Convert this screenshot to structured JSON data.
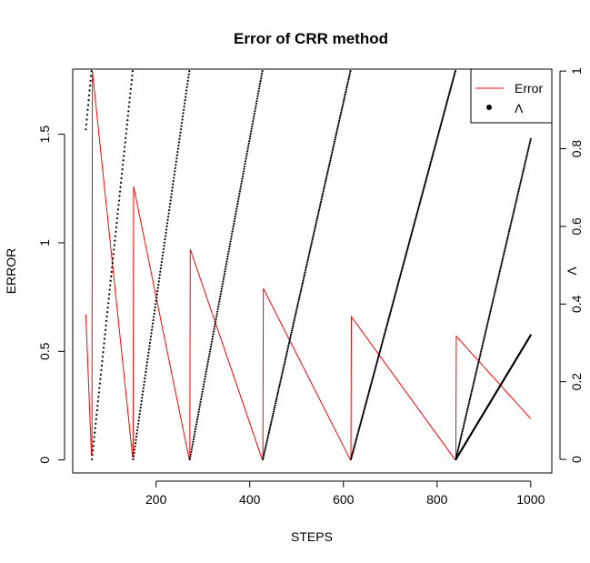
{
  "chart_data": {
    "type": "line",
    "title": "Error of CRR method",
    "xlabel": "STEPS",
    "ylabel": "ERROR",
    "y2label": "Λ",
    "xlim": [
      22,
      1045
    ],
    "ylim": [
      -0.06,
      1.8
    ],
    "y2lim": [
      -0.035,
      1.005
    ],
    "xticks": [
      200,
      400,
      600,
      800,
      1000
    ],
    "yticks": [
      0.0,
      0.5,
      1.0,
      1.5
    ],
    "y2ticks": [
      0.0,
      0.2,
      0.4,
      0.6,
      0.8,
      1.0
    ],
    "grid": false,
    "legend": {
      "position": "top-right",
      "entries": [
        {
          "label": "Error",
          "type": "line",
          "color": "#ff0000"
        },
        {
          "label": "Λ",
          "type": "point",
          "color": "#000000"
        }
      ]
    },
    "series": [
      {
        "name": "Error",
        "axis": "left",
        "color": "#ff0000",
        "style": "line",
        "segments": [
          {
            "x": [
              50,
              62
            ],
            "y": [
              0.67,
              0.02
            ]
          },
          {
            "x": [
              63,
              64,
              150
            ],
            "y": [
              0.02,
              1.79,
              0.01
            ]
          },
          {
            "x": [
              151,
              152,
              271
            ],
            "y": [
              0.01,
              1.26,
              0.0
            ]
          },
          {
            "x": [
              272,
              273,
              427
            ],
            "y": [
              0.0,
              0.97,
              0.0
            ]
          },
          {
            "x": [
              428,
              429,
              615
            ],
            "y": [
              0.0,
              0.79,
              0.0
            ]
          },
          {
            "x": [
              616,
              617,
              839
            ],
            "y": [
              0.0,
              0.66,
              0.0
            ]
          },
          {
            "x": [
              840,
              841,
              1000
            ],
            "y": [
              0.0,
              0.57,
              0.19
            ]
          }
        ]
      },
      {
        "name": "Λ",
        "axis": "right",
        "color": "#000000",
        "style": "points",
        "segments": [
          {
            "x": [
              50,
              62
            ],
            "y": [
              0.85,
              1.0
            ]
          },
          {
            "x": [
              63,
              150
            ],
            "y": [
              0.0,
              1.0
            ]
          },
          {
            "x": [
              151,
              271
            ],
            "y": [
              0.0,
              1.0
            ]
          },
          {
            "x": [
              272,
              427
            ],
            "y": [
              0.0,
              1.0
            ]
          },
          {
            "x": [
              428,
              615
            ],
            "y": [
              0.0,
              1.0
            ]
          },
          {
            "x": [
              616,
              839
            ],
            "y": [
              0.0,
              1.0
            ]
          },
          {
            "x": [
              840,
              1000
            ],
            "y": [
              0.0,
              0.825
            ]
          },
          {
            "x": [
              840,
              1000
            ],
            "y": [
              0.0,
              0.32
            ]
          }
        ]
      }
    ]
  }
}
